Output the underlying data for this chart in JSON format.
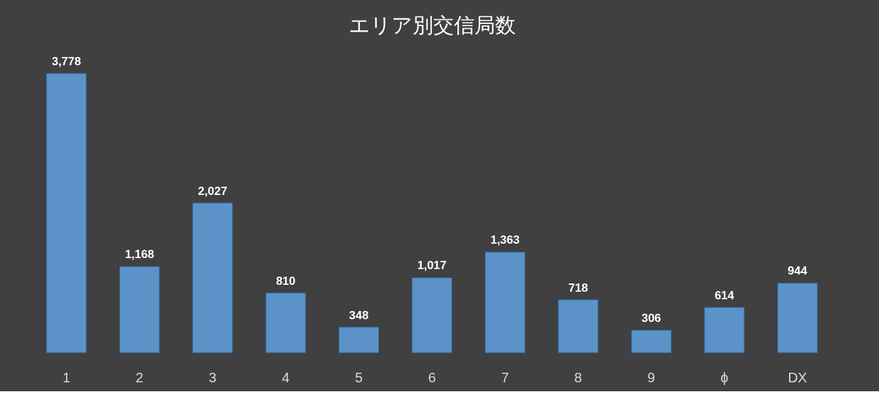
{
  "chart_data": {
    "type": "bar",
    "title": "エリア別交信局数",
    "categories": [
      "1",
      "2",
      "3",
      "4",
      "5",
      "6",
      "7",
      "8",
      "9",
      "ϕ",
      "DX"
    ],
    "values": [
      3778,
      1168,
      2027,
      810,
      348,
      1017,
      1363,
      718,
      306,
      614,
      944
    ],
    "value_labels": [
      "3,778",
      "1,168",
      "2,027",
      "810",
      "348",
      "1,017",
      "1,363",
      "718",
      "306",
      "614",
      "944"
    ],
    "color": "#5b93c8"
  }
}
